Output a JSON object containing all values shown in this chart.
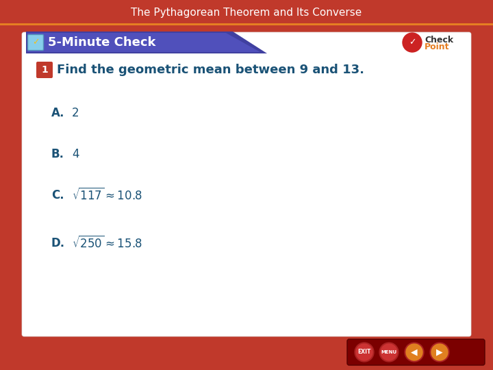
{
  "title": "The Pythagorean Theorem and Its Converse",
  "title_color": "#ffffff",
  "title_bg_color": "#c0392b",
  "header_label": "5-Minute Check",
  "header_bg_gradient_dark": "#3a3a8c",
  "header_bg_gradient_light": "#5555bb",
  "main_bg_color": "#ffffff",
  "outer_bg_color": "#c0392b",
  "question_text": "Find the geometric mean between 9 and 13.",
  "question_color": "#1a5276",
  "answer_color": "#1a5276",
  "answers": [
    {
      "label": "A.",
      "text": "2",
      "is_math": false
    },
    {
      "label": "B.",
      "text": "4",
      "is_math": false
    },
    {
      "label": "C.",
      "text": "$\\sqrt{117} \\approx 10.8$",
      "is_math": true
    },
    {
      "label": "D.",
      "text": "$\\sqrt{250} \\approx 15.8$",
      "is_math": true
    }
  ],
  "checkpoint_red": "#c0392b",
  "checkpoint_text_check": "Check",
  "checkpoint_text_point": "Point",
  "footer_bg": "#7b0000",
  "nav_buttons": [
    "EXIT",
    "MENU"
  ],
  "title_fontsize": 11,
  "header_fontsize": 13,
  "question_fontsize": 13,
  "answer_fontsize": 12
}
